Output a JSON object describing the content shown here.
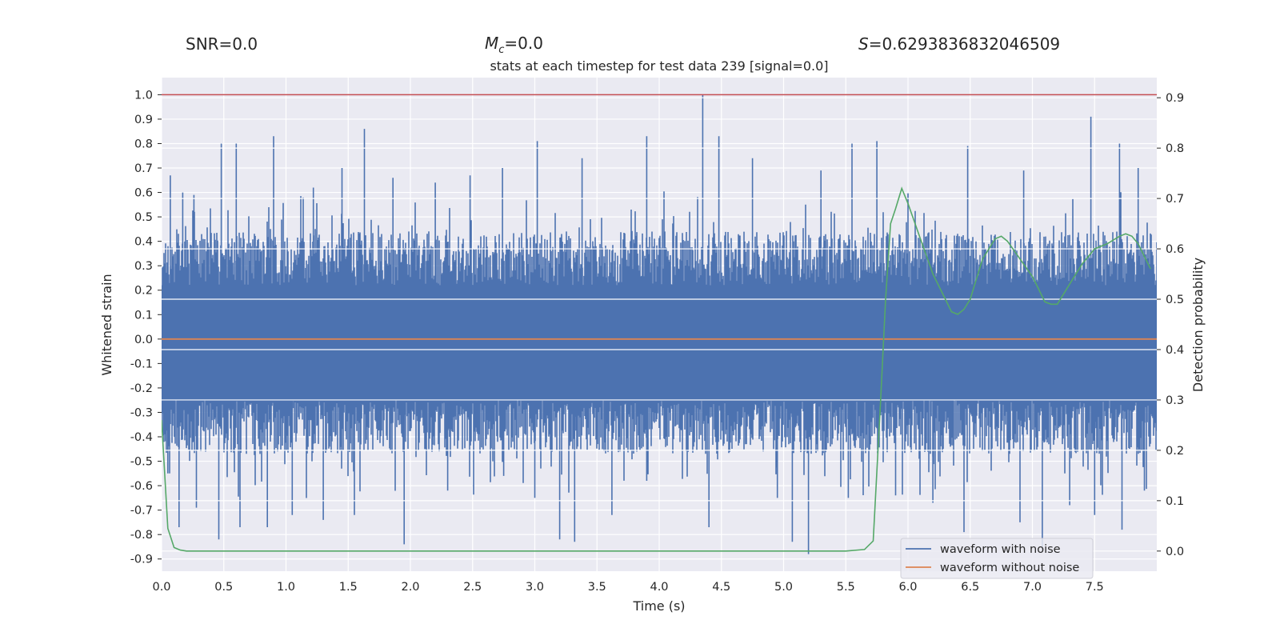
{
  "header": {
    "snr_text": "SNR=0.0",
    "mc_symbol": "M",
    "mc_sub": "c",
    "mc_value": "=0.0",
    "s_symbol": "S",
    "s_value": "=0.6293836832046509"
  },
  "chart_data": {
    "type": "line",
    "title": "stats at each timestep for test data 239 [signal=0.0]",
    "xlabel": "Time (s)",
    "ylabel": "Whitened strain",
    "y2label": "Detection probability",
    "xlim": [
      0.0,
      8.0
    ],
    "ylim": [
      -0.95,
      1.07
    ],
    "y2lim": [
      -0.04,
      0.94
    ],
    "xticks": [
      "0.0",
      "0.5",
      "1.0",
      "1.5",
      "2.0",
      "2.5",
      "3.0",
      "3.5",
      "4.0",
      "4.5",
      "5.0",
      "5.5",
      "6.0",
      "6.5",
      "7.0",
      "7.5"
    ],
    "yticks": [
      "1.0",
      "0.9",
      "0.8",
      "0.7",
      "0.6",
      "0.5",
      "0.4",
      "0.3",
      "0.2",
      "0.1",
      "0.0",
      "-0.1",
      "-0.2",
      "-0.3",
      "-0.4",
      "-0.5",
      "-0.6",
      "-0.7",
      "-0.8",
      "-0.9"
    ],
    "y2ticks": [
      "0.9",
      "0.8",
      "0.7",
      "0.6",
      "0.5",
      "0.4",
      "0.3",
      "0.2",
      "0.1",
      "0.0"
    ],
    "threshold": {
      "y": 1.0,
      "color": "#c44e52"
    },
    "series": [
      {
        "name": "waveform with noise",
        "color": "#4c72b0",
        "axis": "left",
        "kind": "dense noise band",
        "band_upper_typical": 0.22,
        "band_lower_typical": -0.25,
        "peaks": [
          [
            0.07,
            0.67
          ],
          [
            0.17,
            0.6
          ],
          [
            0.26,
            0.59
          ],
          [
            0.48,
            0.8
          ],
          [
            0.6,
            0.8
          ],
          [
            0.9,
            0.83
          ],
          [
            1.22,
            0.62
          ],
          [
            1.45,
            0.7
          ],
          [
            1.63,
            0.86
          ],
          [
            1.86,
            0.66
          ],
          [
            2.2,
            0.64
          ],
          [
            2.48,
            0.67
          ],
          [
            2.74,
            0.7
          ],
          [
            3.02,
            0.81
          ],
          [
            3.38,
            0.74
          ],
          [
            3.9,
            0.83
          ],
          [
            4.35,
            1.0
          ],
          [
            4.48,
            0.83
          ],
          [
            4.75,
            0.74
          ],
          [
            5.3,
            0.69
          ],
          [
            5.55,
            0.8
          ],
          [
            5.75,
            0.81
          ],
          [
            6.48,
            0.79
          ],
          [
            6.93,
            0.69
          ],
          [
            7.47,
            0.91
          ],
          [
            7.7,
            0.8
          ],
          [
            7.85,
            0.7
          ]
        ],
        "troughs": [
          [
            0.05,
            -0.55
          ],
          [
            0.14,
            -0.77
          ],
          [
            0.28,
            -0.69
          ],
          [
            0.46,
            -0.82
          ],
          [
            0.63,
            -0.77
          ],
          [
            0.85,
            -0.77
          ],
          [
            1.05,
            -0.72
          ],
          [
            1.3,
            -0.74
          ],
          [
            1.55,
            -0.72
          ],
          [
            1.95,
            -0.84
          ],
          [
            2.3,
            -0.62
          ],
          [
            2.75,
            -0.56
          ],
          [
            3.0,
            -0.65
          ],
          [
            3.2,
            -0.82
          ],
          [
            3.32,
            -0.83
          ],
          [
            3.62,
            -0.72
          ],
          [
            3.9,
            -0.58
          ],
          [
            4.4,
            -0.77
          ],
          [
            4.95,
            -0.65
          ],
          [
            5.07,
            -0.83
          ],
          [
            5.2,
            -0.88
          ],
          [
            5.52,
            -0.65
          ],
          [
            5.9,
            -0.64
          ],
          [
            6.2,
            -0.67
          ],
          [
            6.45,
            -0.79
          ],
          [
            6.9,
            -0.75
          ],
          [
            7.08,
            -0.87
          ],
          [
            7.3,
            -0.68
          ],
          [
            7.5,
            -0.72
          ],
          [
            7.72,
            -0.78
          ],
          [
            7.9,
            -0.62
          ]
        ]
      },
      {
        "name": "waveform without noise",
        "color": "#dd8452",
        "axis": "left",
        "x": [
          0.0,
          8.0
        ],
        "y": [
          0.0,
          0.0
        ]
      },
      {
        "name": "detection probability",
        "color": "#55a868",
        "axis": "right",
        "x": [
          0.0,
          0.05,
          0.1,
          0.15,
          0.2,
          0.3,
          0.5,
          1.0,
          2.0,
          3.0,
          4.0,
          5.0,
          5.5,
          5.65,
          5.72,
          5.78,
          5.82,
          5.86,
          5.9,
          5.95,
          6.0,
          6.1,
          6.2,
          6.3,
          6.35,
          6.4,
          6.45,
          6.5,
          6.55,
          6.6,
          6.7,
          6.75,
          6.8,
          6.9,
          7.0,
          7.05,
          7.1,
          7.15,
          7.2,
          7.3,
          7.4,
          7.5,
          7.6,
          7.7,
          7.75,
          7.8,
          7.85,
          7.9,
          7.95
        ],
        "y": [
          0.26,
          0.045,
          0.007,
          0.002,
          0.0,
          0.0,
          0.0,
          0.0,
          0.0,
          0.0,
          0.0,
          0.0,
          0.0,
          0.003,
          0.02,
          0.3,
          0.5,
          0.65,
          0.68,
          0.72,
          0.69,
          0.62,
          0.55,
          0.5,
          0.475,
          0.47,
          0.48,
          0.5,
          0.54,
          0.58,
          0.62,
          0.625,
          0.615,
          0.58,
          0.545,
          0.52,
          0.495,
          0.49,
          0.49,
          0.53,
          0.57,
          0.6,
          0.61,
          0.625,
          0.63,
          0.625,
          0.61,
          0.585,
          0.56
        ]
      }
    ],
    "legend": {
      "position": "lower-right",
      "entries": [
        "waveform with noise",
        "waveform without noise"
      ]
    }
  }
}
